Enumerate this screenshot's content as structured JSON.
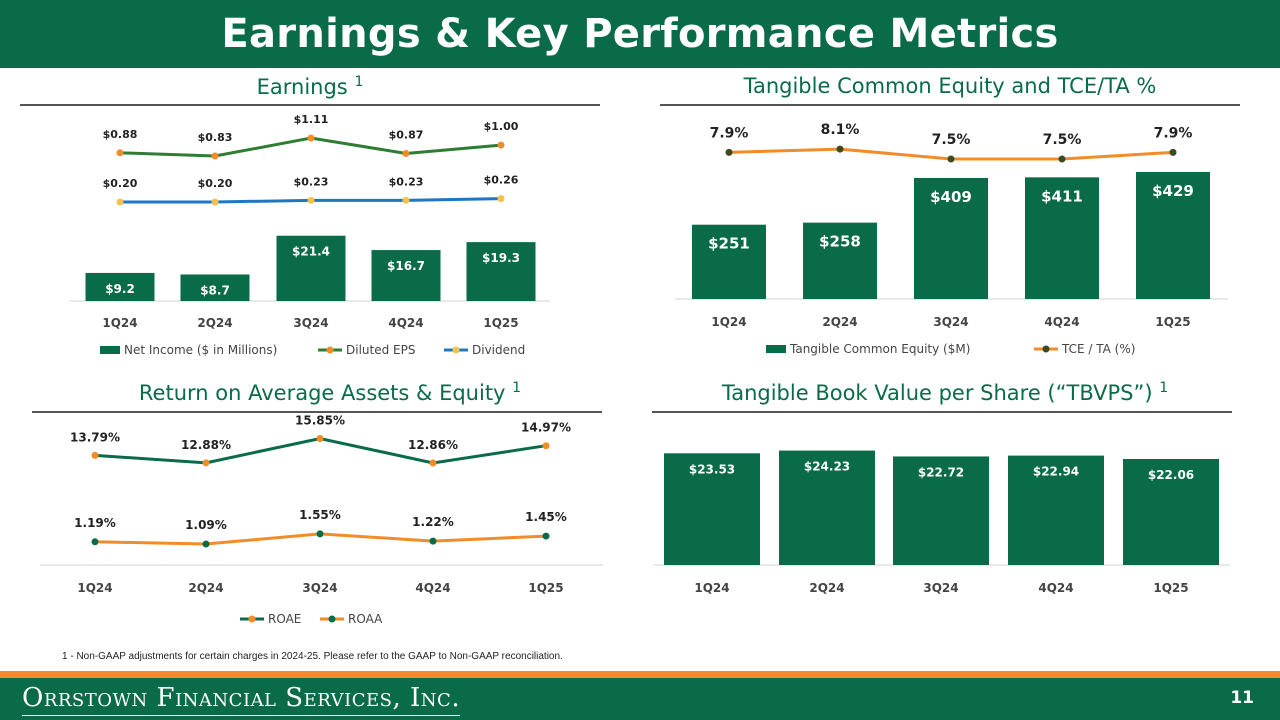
{
  "page": {
    "title": "Earnings & Key Performance Metrics",
    "footnote": "1 - Non-GAAP adjustments for certain charges in 2024-25. Please refer to the GAAP to Non-GAAP reconciliation.",
    "logo": "Orrstown Financial Services, Inc.",
    "page_number": "11"
  },
  "colors": {
    "green": "#0a6b48",
    "dark_green_line": "#2e7d32",
    "blue_line": "#1f77c2",
    "orange": "#f28c28",
    "gold_marker": "#f2c14e"
  },
  "chart_data": [
    {
      "id": "earnings",
      "type": "bar+line",
      "title": "Earnings",
      "superscript": "1",
      "categories": [
        "1Q24",
        "2Q24",
        "3Q24",
        "4Q24",
        "1Q25"
      ],
      "bars": {
        "name": "Net Income ($ in Millions)",
        "values": [
          9.2,
          8.7,
          21.4,
          16.7,
          19.3
        ],
        "labels": [
          "$9.2",
          "$8.7",
          "$21.4",
          "$16.7",
          "$19.3"
        ]
      },
      "lines": [
        {
          "name": "Diluted EPS",
          "values": [
            0.88,
            0.83,
            1.11,
            0.87,
            1.0
          ],
          "labels": [
            "$0.88",
            "$0.83",
            "$1.11",
            "$0.87",
            "$1.00"
          ]
        },
        {
          "name": "Dividend",
          "values": [
            0.2,
            0.2,
            0.23,
            0.23,
            0.26
          ],
          "labels": [
            "$0.20",
            "$0.20",
            "$0.23",
            "$0.23",
            "$0.26"
          ]
        }
      ]
    },
    {
      "id": "tce",
      "type": "bar+line",
      "title": "Tangible Common Equity and TCE/TA %",
      "categories": [
        "1Q24",
        "2Q24",
        "3Q24",
        "4Q24",
        "1Q25"
      ],
      "bars": {
        "name": "Tangible Common Equity ($M)",
        "values": [
          251,
          258,
          409,
          411,
          429
        ],
        "labels": [
          "$251",
          "$258",
          "$409",
          "$411",
          "$429"
        ]
      },
      "lines": [
        {
          "name": "TCE / TA (%)",
          "values": [
            7.9,
            8.1,
            7.5,
            7.5,
            7.9
          ],
          "labels": [
            "7.9%",
            "8.1%",
            "7.5%",
            "7.5%",
            "7.9%"
          ]
        }
      ]
    },
    {
      "id": "returns",
      "type": "line",
      "title": "Return on Average Assets & Equity",
      "superscript": "1",
      "categories": [
        "1Q24",
        "2Q24",
        "3Q24",
        "4Q24",
        "1Q25"
      ],
      "lines": [
        {
          "name": "ROAE",
          "values": [
            13.79,
            12.88,
            15.85,
            12.86,
            14.97
          ],
          "labels": [
            "13.79%",
            "12.88%",
            "15.85%",
            "12.86%",
            "14.97%"
          ]
        },
        {
          "name": "ROAA",
          "values": [
            1.19,
            1.09,
            1.55,
            1.22,
            1.45
          ],
          "labels": [
            "1.19%",
            "1.09%",
            "1.55%",
            "1.22%",
            "1.45%"
          ]
        }
      ]
    },
    {
      "id": "tbvps",
      "type": "bar",
      "title": "Tangible Book Value per Share (“TBVPS”)",
      "superscript": "1",
      "categories": [
        "1Q24",
        "2Q24",
        "3Q24",
        "4Q24",
        "1Q25"
      ],
      "bars": {
        "name": "TBVPS",
        "values": [
          23.53,
          24.23,
          22.72,
          22.94,
          22.06
        ],
        "labels": [
          "$23.53",
          "$24.23",
          "$22.72",
          "$22.94",
          "$22.06"
        ]
      }
    }
  ]
}
